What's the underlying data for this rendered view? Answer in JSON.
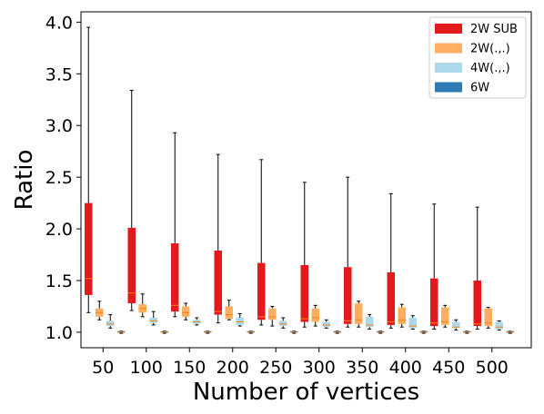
{
  "chart_data": {
    "type": "boxplot",
    "title": "",
    "xlabel": "Number of vertices",
    "ylabel": "Ratio",
    "ylim": [
      0.85,
      4.1
    ],
    "yticks": [
      "1.0",
      "1.5",
      "2.0",
      "2.5",
      "3.0",
      "3.5",
      "4.0"
    ],
    "categories": [
      "50",
      "100",
      "150",
      "200",
      "250",
      "300",
      "350",
      "400",
      "450",
      "500"
    ],
    "legend_position": "top-right",
    "series": [
      {
        "name": "2W SUB",
        "color": "#e31a1c",
        "boxes": [
          {
            "whislo": 1.19,
            "q1": 1.36,
            "med": 1.52,
            "q3": 2.25,
            "whishi": 3.95
          },
          {
            "whislo": 1.21,
            "q1": 1.28,
            "med": 1.38,
            "q3": 2.01,
            "whishi": 3.34
          },
          {
            "whislo": 1.15,
            "q1": 1.2,
            "med": 1.26,
            "q3": 1.86,
            "whishi": 2.93
          },
          {
            "whislo": 1.09,
            "q1": 1.17,
            "med": 1.2,
            "q3": 1.79,
            "whishi": 2.72
          },
          {
            "whislo": 1.07,
            "q1": 1.12,
            "med": 1.15,
            "q3": 1.67,
            "whishi": 2.67
          },
          {
            "whislo": 1.05,
            "q1": 1.1,
            "med": 1.13,
            "q3": 1.65,
            "whishi": 2.45
          },
          {
            "whislo": 1.05,
            "q1": 1.08,
            "med": 1.11,
            "q3": 1.63,
            "whishi": 2.5
          },
          {
            "whislo": 1.04,
            "q1": 1.07,
            "med": 1.1,
            "q3": 1.58,
            "whishi": 2.34
          },
          {
            "whislo": 1.03,
            "q1": 1.06,
            "med": 1.09,
            "q3": 1.52,
            "whishi": 2.24
          },
          {
            "whislo": 1.03,
            "q1": 1.06,
            "med": 1.08,
            "q3": 1.5,
            "whishi": 2.21
          }
        ]
      },
      {
        "name": "2W(.,.)",
        "color": "#fdae61",
        "boxes": [
          {
            "whislo": 1.12,
            "q1": 1.15,
            "med": 1.19,
            "q3": 1.23,
            "whishi": 1.3
          },
          {
            "whislo": 1.15,
            "q1": 1.19,
            "med": 1.23,
            "q3": 1.27,
            "whishi": 1.37
          },
          {
            "whislo": 1.12,
            "q1": 1.15,
            "med": 1.19,
            "q3": 1.25,
            "whishi": 1.28
          },
          {
            "whislo": 1.12,
            "q1": 1.13,
            "med": 1.17,
            "q3": 1.25,
            "whishi": 1.31
          },
          {
            "whislo": 1.06,
            "q1": 1.12,
            "med": 1.15,
            "q3": 1.23,
            "whishi": 1.25
          },
          {
            "whislo": 1.06,
            "q1": 1.1,
            "med": 1.14,
            "q3": 1.23,
            "whishi": 1.26
          },
          {
            "whislo": 1.05,
            "q1": 1.08,
            "med": 1.12,
            "q3": 1.28,
            "whishi": 1.3
          },
          {
            "whislo": 1.05,
            "q1": 1.08,
            "med": 1.12,
            "q3": 1.24,
            "whishi": 1.27
          },
          {
            "whislo": 1.05,
            "q1": 1.07,
            "med": 1.1,
            "q3": 1.24,
            "whishi": 1.26
          },
          {
            "whislo": 1.04,
            "q1": 1.06,
            "med": 1.09,
            "q3": 1.23,
            "whishi": 1.24
          }
        ]
      },
      {
        "name": "4W(.,.)",
        "color": "#abd9e9",
        "boxes": [
          {
            "whislo": 1.04,
            "q1": 1.06,
            "med": 1.08,
            "q3": 1.11,
            "whishi": 1.17
          },
          {
            "whislo": 1.07,
            "q1": 1.09,
            "med": 1.11,
            "q3": 1.14,
            "whishi": 1.2
          },
          {
            "whislo": 1.07,
            "q1": 1.08,
            "med": 1.1,
            "q3": 1.12,
            "whishi": 1.14
          },
          {
            "whislo": 1.06,
            "q1": 1.07,
            "med": 1.1,
            "q3": 1.14,
            "whishi": 1.18
          },
          {
            "whislo": 1.04,
            "q1": 1.06,
            "med": 1.08,
            "q3": 1.11,
            "whishi": 1.14
          },
          {
            "whislo": 1.04,
            "q1": 1.05,
            "med": 1.07,
            "q3": 1.1,
            "whishi": 1.12
          },
          {
            "whislo": 1.03,
            "q1": 1.05,
            "med": 1.07,
            "q3": 1.15,
            "whishi": 1.17
          },
          {
            "whislo": 1.03,
            "q1": 1.04,
            "med": 1.06,
            "q3": 1.14,
            "whishi": 1.16
          },
          {
            "whislo": 1.02,
            "q1": 1.04,
            "med": 1.05,
            "q3": 1.1,
            "whishi": 1.12
          },
          {
            "whislo": 1.02,
            "q1": 1.03,
            "med": 1.05,
            "q3": 1.1,
            "whishi": 1.11
          }
        ]
      },
      {
        "name": "6W",
        "color": "#2c7bb6",
        "boxes": [
          {
            "whislo": 0.99,
            "q1": 1.0,
            "med": 1.0,
            "q3": 1.01,
            "whishi": 1.01
          },
          {
            "whislo": 0.99,
            "q1": 1.0,
            "med": 1.0,
            "q3": 1.01,
            "whishi": 1.01
          },
          {
            "whislo": 0.99,
            "q1": 1.0,
            "med": 1.0,
            "q3": 1.01,
            "whishi": 1.01
          },
          {
            "whislo": 0.99,
            "q1": 1.0,
            "med": 1.0,
            "q3": 1.01,
            "whishi": 1.01
          },
          {
            "whislo": 0.99,
            "q1": 1.0,
            "med": 1.0,
            "q3": 1.01,
            "whishi": 1.01
          },
          {
            "whislo": 0.99,
            "q1": 1.0,
            "med": 1.0,
            "q3": 1.01,
            "whishi": 1.01
          },
          {
            "whislo": 0.99,
            "q1": 1.0,
            "med": 1.0,
            "q3": 1.01,
            "whishi": 1.01
          },
          {
            "whislo": 0.99,
            "q1": 1.0,
            "med": 1.0,
            "q3": 1.01,
            "whishi": 1.01
          },
          {
            "whislo": 0.99,
            "q1": 1.0,
            "med": 1.0,
            "q3": 1.01,
            "whishi": 1.01
          },
          {
            "whislo": 0.99,
            "q1": 1.0,
            "med": 1.0,
            "q3": 1.01,
            "whishi": 1.01
          }
        ]
      }
    ],
    "colors": {
      "median": "#ff7f0e",
      "whisker": "#000000"
    }
  }
}
